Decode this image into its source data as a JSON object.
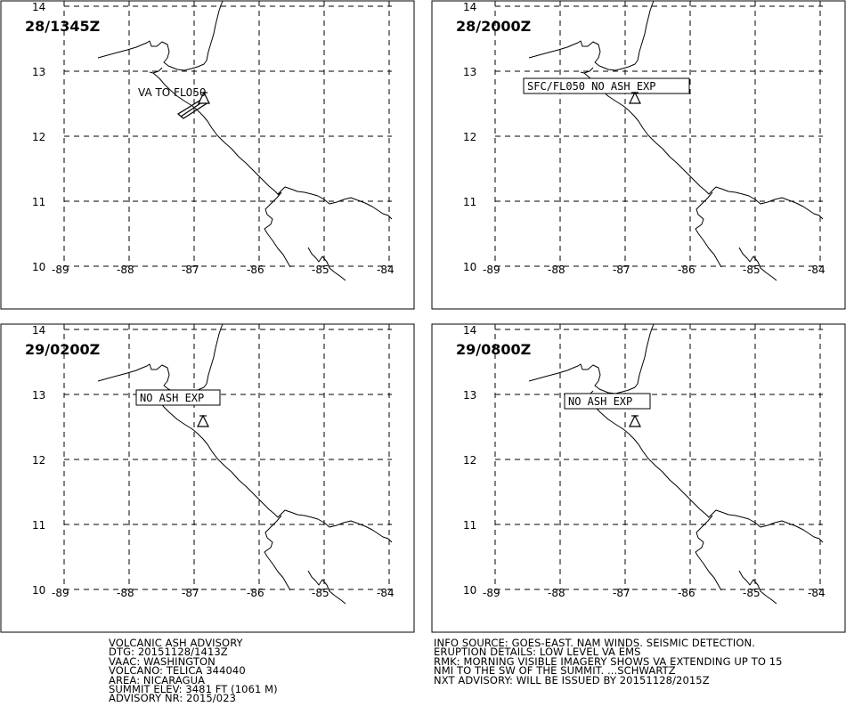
{
  "panels": [
    {
      "title": "28/1345Z",
      "label": "VA TO FL050",
      "label_boxed": false
    },
    {
      "title": "28/2000Z",
      "label": "SFC/FL050 NO ASH EXP",
      "label_boxed": true
    },
    {
      "title": "29/0200Z",
      "label": "NO ASH EXP",
      "label_boxed": true
    },
    {
      "title": "29/0800Z",
      "label": "NO ASH EXP",
      "label_boxed": true
    }
  ],
  "lat_ticks": [
    "14",
    "13",
    "12",
    "11",
    "10"
  ],
  "lon_ticks": [
    "-89",
    "-88",
    "-87",
    "-86",
    "-85",
    "-84"
  ],
  "advisory_left": [
    "VOLCANIC ASH ADVISORY",
    "DTG: 20151128/1413Z",
    "VAAC: WASHINGTON",
    "VOLCANO: TELICA 344040",
    "AREA: NICARAGUA",
    "SUMMIT ELEV: 3481 FT (1061 M)",
    "ADVISORY NR: 2015/023"
  ],
  "advisory_right": [
    "INFO SOURCE: GOES-EAST. NAM WINDS. SEISMIC DETECTION.",
    "ERUPTION DETAILS: LOW LEVEL VA EMS",
    "RMK: MORNING VISIBLE IMAGERY SHOWS VA EXTENDING UP TO 15",
    "NMI TO THE SW OF THE SUMMIT. ...SCHWARTZ",
    "NXT ADVISORY: WILL BE ISSUED BY 20151128/2015Z"
  ]
}
